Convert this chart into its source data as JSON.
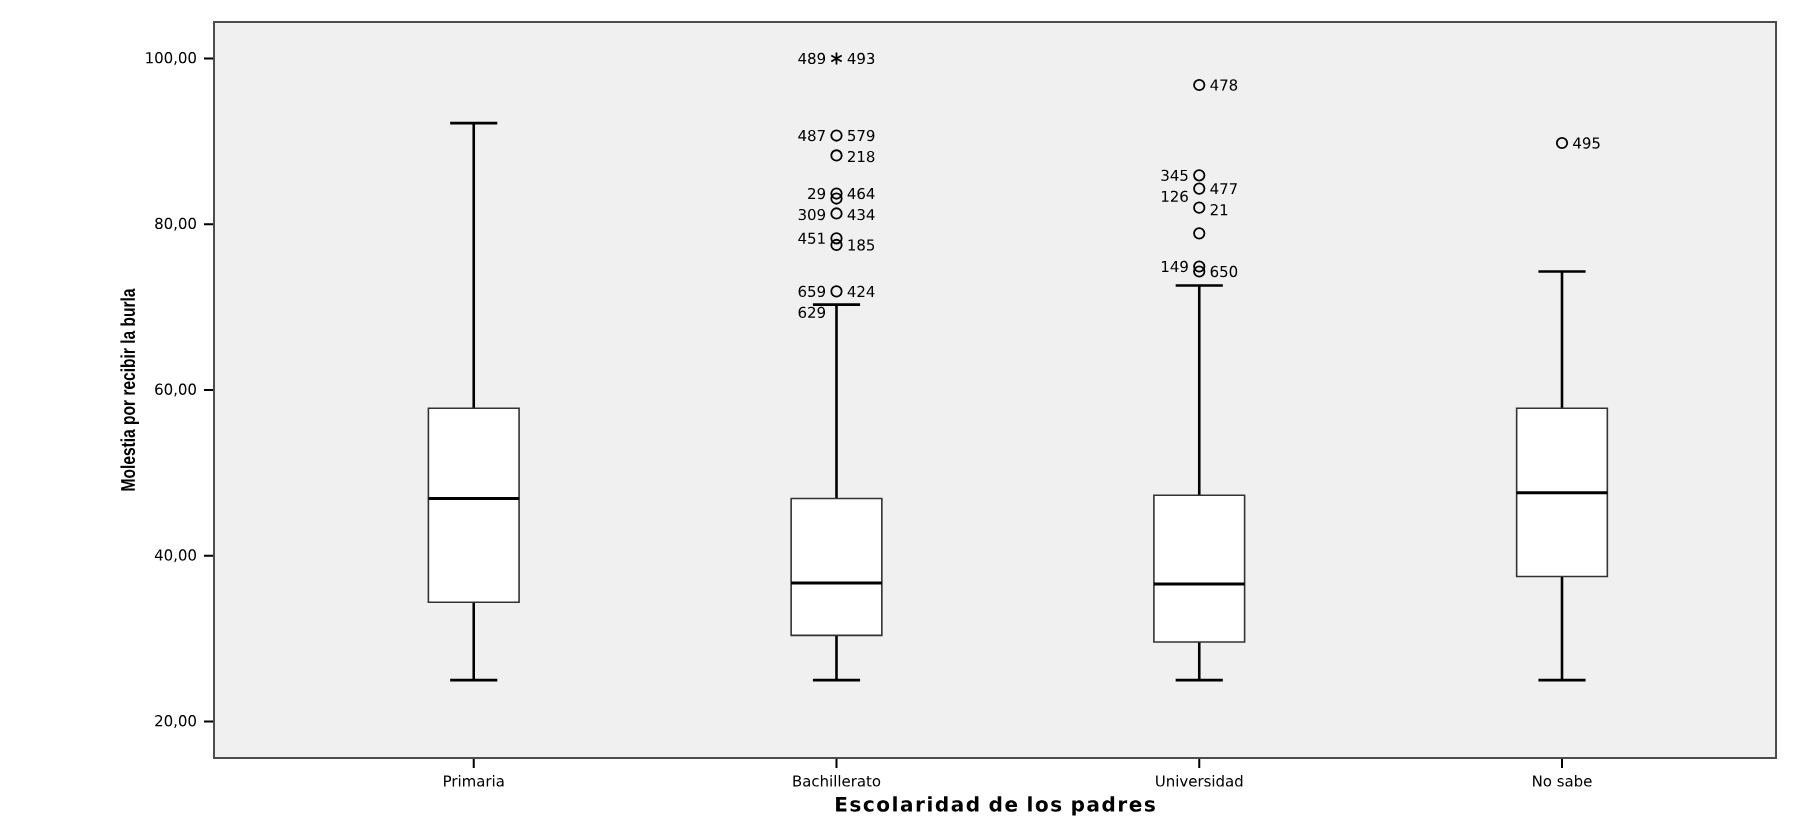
{
  "chart_data": {
    "type": "box",
    "xlabel": "Escolaridad de los padres",
    "ylabel": "Molestia por recibir la burla",
    "categories": [
      "Primaria",
      "Bachillerato",
      "Universidad",
      "No sabe"
    ],
    "boxes": [
      {
        "low": 25.0,
        "q1": 34.4,
        "median": 46.9,
        "q3": 57.8,
        "high": 92.2
      },
      {
        "low": 25.0,
        "q1": 30.4,
        "median": 36.7,
        "q3": 46.9,
        "high": 70.3
      },
      {
        "low": 25.0,
        "q1": 29.6,
        "median": 36.6,
        "q3": 47.3,
        "high": 72.6
      },
      {
        "low": 25.0,
        "q1": 37.5,
        "median": 47.6,
        "q3": 57.8,
        "high": 74.3
      }
    ],
    "series": [
      {
        "type": "scatter",
        "color": "#000000",
        "x": [
          "Bachillerato",
          "Bachillerato",
          "Bachillerato",
          "Bachillerato",
          "Bachillerato",
          "Bachillerato",
          "Bachillerato",
          "Bachillerato",
          "Bachillerato",
          "Universidad",
          "Universidad",
          "Universidad",
          "Universidad",
          "Universidad",
          "Universidad",
          "Universidad",
          "No sabe"
        ],
        "values": [
          100.0,
          90.7,
          88.3,
          83.7,
          83.1,
          81.3,
          78.3,
          77.5,
          71.9,
          96.8,
          85.9,
          84.3,
          82.0,
          78.9,
          74.9,
          74.3,
          89.8
        ]
      }
    ],
    "ylim": [
      15.6,
      104.4
    ],
    "yticks": [
      {
        "value": 20,
        "label": "20,00"
      },
      {
        "value": 40,
        "label": "40,00"
      },
      {
        "value": 60,
        "label": "60,00"
      },
      {
        "value": 80,
        "label": "80,00"
      },
      {
        "value": 100,
        "label": "100,00"
      }
    ],
    "annotations": [
      {
        "text": "493",
        "x": "Bachillerato",
        "y": 100.0
      },
      {
        "text": "489",
        "x": "Bachillerato",
        "y": 100.0
      },
      {
        "text": "579",
        "x": "Bachillerato",
        "y": 90.7
      },
      {
        "text": "487",
        "x": "Bachillerato",
        "y": 90.7
      },
      {
        "text": "218",
        "x": "Bachillerato",
        "y": 88.3
      },
      {
        "text": "29",
        "x": "Bachillerato",
        "y": 83.7
      },
      {
        "text": "464",
        "x": "Bachillerato",
        "y": 83.7
      },
      {
        "text": "309",
        "x": "Bachillerato",
        "y": 83.1
      },
      {
        "text": "434",
        "x": "Bachillerato",
        "y": 81.3
      },
      {
        "text": "451",
        "x": "Bachillerato",
        "y": 78.3
      },
      {
        "text": "185",
        "x": "Bachillerato",
        "y": 77.5
      },
      {
        "text": "659",
        "x": "Bachillerato",
        "y": 71.9
      },
      {
        "text": "424",
        "x": "Bachillerato",
        "y": 71.9
      },
      {
        "text": "629",
        "x": "Bachillerato",
        "y": 71.9
      },
      {
        "text": "478",
        "x": "Universidad",
        "y": 96.8
      },
      {
        "text": "345",
        "x": "Universidad",
        "y": 85.9
      },
      {
        "text": "477",
        "x": "Universidad",
        "y": 84.3
      },
      {
        "text": "126",
        "x": "Universidad",
        "y": 84.3
      },
      {
        "text": "21",
        "x": "Universidad",
        "y": 82.0
      },
      {
        "text": "149",
        "x": "Universidad",
        "y": 74.9
      },
      {
        "text": "650",
        "x": "Universidad",
        "y": 74.3
      },
      {
        "text": "495",
        "x": "No sabe",
        "y": 89.8
      }
    ]
  }
}
